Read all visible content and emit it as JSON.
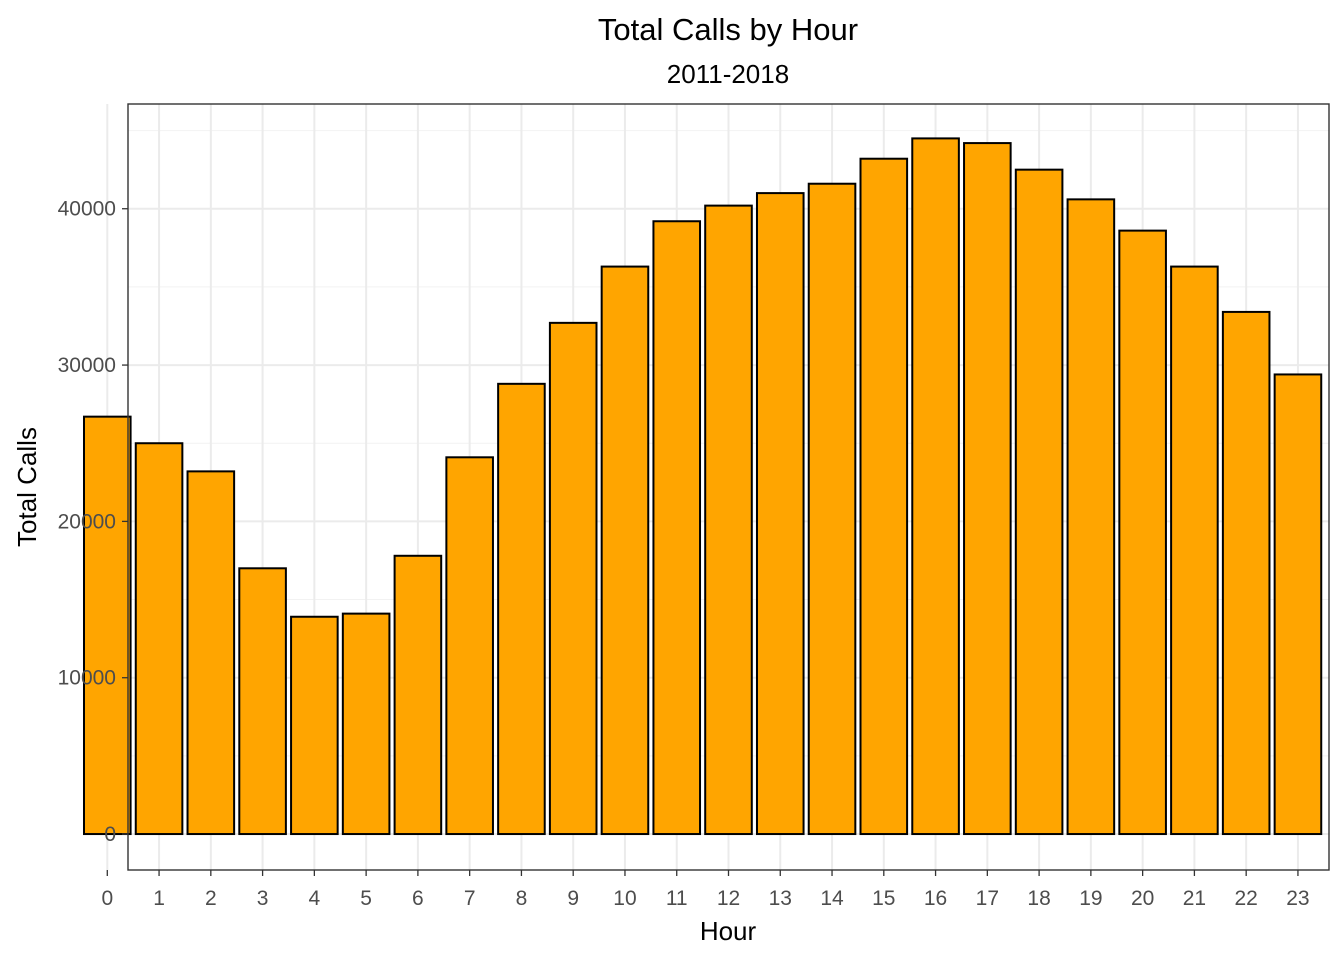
{
  "chart_data": {
    "type": "bar",
    "title": "Total Calls by Hour",
    "subtitle": "2011-2018",
    "xlabel": "Hour",
    "ylabel": "Total Calls",
    "categories": [
      "0",
      "1",
      "2",
      "3",
      "4",
      "5",
      "6",
      "7",
      "8",
      "9",
      "10",
      "11",
      "12",
      "13",
      "14",
      "15",
      "16",
      "17",
      "18",
      "19",
      "20",
      "21",
      "22",
      "23"
    ],
    "values": [
      26700,
      25000,
      23200,
      17000,
      13900,
      14100,
      17800,
      24100,
      28800,
      32700,
      36300,
      39200,
      40200,
      41000,
      41600,
      43200,
      44500,
      44200,
      42500,
      40600,
      38600,
      36300,
      33400,
      29400
    ],
    "ylim": [
      -2300,
      46700
    ],
    "y_ticks": [
      0,
      10000,
      20000,
      30000,
      40000
    ],
    "y_tick_labels": [
      "0",
      "10000",
      "20000",
      "30000",
      "40000"
    ],
    "grid": true,
    "legend": "none",
    "bar_color": "#FFA500",
    "bar_outline": "#000000"
  }
}
